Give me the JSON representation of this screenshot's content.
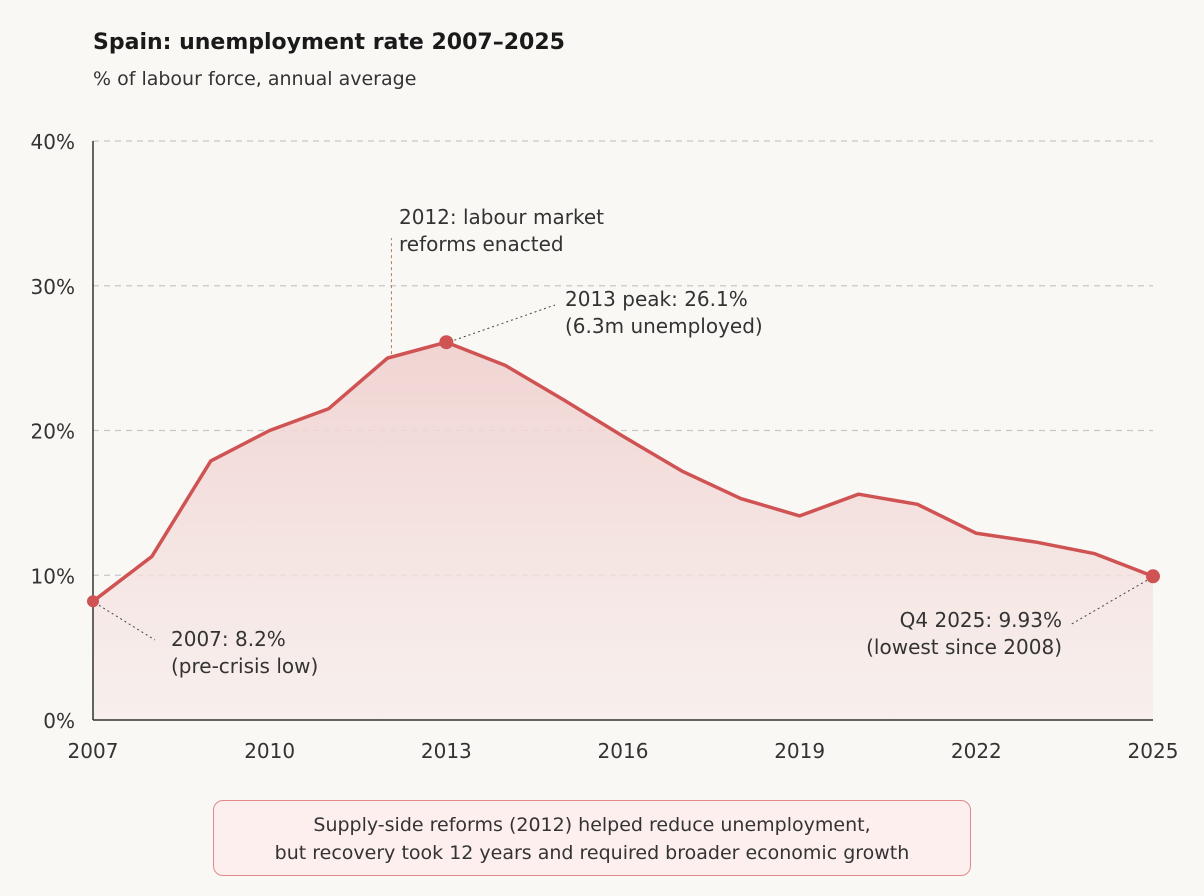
{
  "chart_data": {
    "type": "area",
    "title": "Spain: unemployment rate 2007–2025",
    "subtitle": "% of labour force, annual average",
    "x": [
      2007,
      2008,
      2009,
      2010,
      2011,
      2012,
      2013,
      2014,
      2015,
      2016,
      2017,
      2018,
      2019,
      2020,
      2021,
      2022,
      2023,
      2024,
      2025
    ],
    "values": [
      8.2,
      11.3,
      17.9,
      20.0,
      21.5,
      25.0,
      26.1,
      24.5,
      22.1,
      19.6,
      17.2,
      15.3,
      14.1,
      15.6,
      14.9,
      12.9,
      12.3,
      11.5,
      9.93
    ],
    "ylim": [
      0,
      40
    ],
    "yticks": [
      0,
      10,
      20,
      30,
      40
    ],
    "ytick_labels": [
      "0%",
      "10%",
      "20%",
      "30%",
      "40%"
    ],
    "xticks": [
      2007,
      2010,
      2013,
      2016,
      2019,
      2022,
      2025
    ],
    "xtick_labels": [
      "2007",
      "2010",
      "2013",
      "2016",
      "2019",
      "2022",
      "2025"
    ],
    "grid": "horizontal dashed",
    "line_color": "#d05353",
    "fill_color": "#f3d9d7",
    "annotations": [
      {
        "year": 2012,
        "lines": [
          "2012: labour market",
          "reforms enacted"
        ]
      },
      {
        "year": 2013,
        "lines": [
          "2013 peak: 26.1%",
          "(6.3m unemployed)"
        ]
      },
      {
        "year": 2007,
        "lines": [
          "2007: 8.2%",
          "(pre-crisis low)"
        ]
      },
      {
        "year": 2025,
        "lines": [
          "Q4 2025: 9.93%",
          "(lowest since 2008)"
        ]
      }
    ]
  },
  "note": {
    "line1": "Supply-side reforms (2012) helped reduce unemployment,",
    "line2": "but recovery took 12 years and required broader economic growth"
  }
}
